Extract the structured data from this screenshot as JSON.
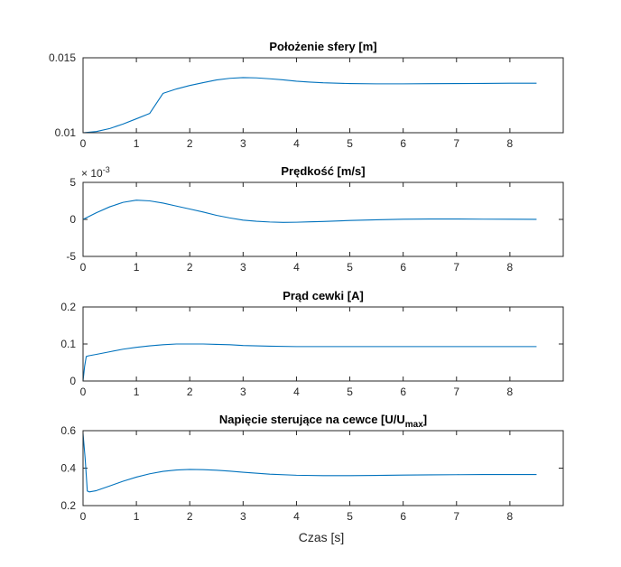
{
  "figure": {
    "xlabel": "Czas [s]"
  },
  "chart_data": [
    {
      "type": "line",
      "title": "Położenie sfery [m]",
      "title_sub": "",
      "title_after": "",
      "xlim": [
        0,
        9
      ],
      "ylim": [
        0.01,
        0.015
      ],
      "xticks": [
        "0",
        "1",
        "2",
        "3",
        "4",
        "5",
        "6",
        "7",
        "8"
      ],
      "yticks": [
        "0.01",
        "0.015"
      ],
      "ytick_values": [
        0.01,
        0.015
      ],
      "y_exponent": "",
      "color": "#0072BD",
      "series": [
        {
          "x": [
            0,
            0.25,
            0.5,
            0.75,
            1,
            1.25,
            1.5,
            1.75,
            2,
            2.25,
            2.5,
            2.75,
            3,
            3.25,
            3.5,
            3.75,
            4,
            4.25,
            4.5,
            5,
            5.5,
            6,
            6.5,
            7,
            7.5,
            8,
            8.5
          ],
          "values": [
            0.01,
            0.01008,
            0.01028,
            0.01058,
            0.01093,
            0.01129,
            0.01263,
            0.01292,
            0.01315,
            0.01334,
            0.01352,
            0.01363,
            0.01368,
            0.01366,
            0.0136,
            0.01353,
            0.01344,
            0.01338,
            0.01333,
            0.01328,
            0.01326,
            0.01326,
            0.01327,
            0.01328,
            0.01329,
            0.0133,
            0.0133
          ]
        }
      ]
    },
    {
      "type": "line",
      "title": "Prędkość [m/s]",
      "title_sub": "",
      "title_after": "",
      "xlim": [
        0,
        9
      ],
      "ylim": [
        -5,
        5
      ],
      "xticks": [
        "0",
        "1",
        "2",
        "3",
        "4",
        "5",
        "6",
        "7",
        "8"
      ],
      "yticks": [
        "-5",
        "0",
        "5"
      ],
      "ytick_values": [
        -5,
        0,
        5
      ],
      "y_exponent": "× 10",
      "y_exponent_power": "-3",
      "color": "#0072BD",
      "series": [
        {
          "x": [
            0,
            0.25,
            0.5,
            0.75,
            1,
            1.25,
            1.5,
            1.75,
            2,
            2.25,
            2.5,
            2.75,
            3,
            3.25,
            3.5,
            3.75,
            4,
            4.25,
            4.5,
            5,
            5.5,
            6,
            6.5,
            7,
            7.5,
            8,
            8.5
          ],
          "values": [
            0,
            0.9,
            1.7,
            2.3,
            2.6,
            2.5,
            2.2,
            1.8,
            1.4,
            1.0,
            0.55,
            0.2,
            -0.1,
            -0.25,
            -0.35,
            -0.4,
            -0.38,
            -0.33,
            -0.28,
            -0.15,
            -0.05,
            0.02,
            0.05,
            0.05,
            0.03,
            0.02,
            0.01
          ]
        }
      ]
    },
    {
      "type": "line",
      "title": "Prąd cewki [A]",
      "title_sub": "",
      "title_after": "",
      "xlim": [
        0,
        9
      ],
      "ylim": [
        0,
        0.2
      ],
      "xticks": [
        "0",
        "1",
        "2",
        "3",
        "4",
        "5",
        "6",
        "7",
        "8"
      ],
      "yticks": [
        "0",
        "0.1",
        "0.2"
      ],
      "ytick_values": [
        0,
        0.1,
        0.2
      ],
      "y_exponent": "",
      "color": "#0072BD",
      "series": [
        {
          "x": [
            0,
            0.03,
            0.06,
            0.1,
            0.25,
            0.5,
            0.75,
            1,
            1.25,
            1.5,
            1.75,
            2,
            2.25,
            2.5,
            2.75,
            3,
            3.5,
            4,
            4.5,
            5,
            5.5,
            6,
            6.5,
            7,
            7.5,
            8,
            8.5
          ],
          "values": [
            0,
            0.04,
            0.066,
            0.068,
            0.072,
            0.079,
            0.086,
            0.091,
            0.095,
            0.098,
            0.1,
            0.1,
            0.1,
            0.099,
            0.098,
            0.096,
            0.094,
            0.093,
            0.093,
            0.093,
            0.093,
            0.093,
            0.093,
            0.093,
            0.093,
            0.093,
            0.093
          ]
        }
      ]
    },
    {
      "type": "line",
      "title": "Napięcie sterujące na cewce [U/U",
      "title_sub": "max",
      "title_after": "]",
      "xlim": [
        0,
        9
      ],
      "ylim": [
        0.2,
        0.6
      ],
      "xticks": [
        "0",
        "1",
        "2",
        "3",
        "4",
        "5",
        "6",
        "7",
        "8"
      ],
      "yticks": [
        "0.2",
        "0.4",
        "0.6"
      ],
      "ytick_values": [
        0.2,
        0.4,
        0.6
      ],
      "y_exponent": "",
      "color": "#0072BD",
      "series": [
        {
          "x": [
            0,
            0.04,
            0.08,
            0.12,
            0.25,
            0.5,
            0.75,
            1,
            1.25,
            1.5,
            1.75,
            2,
            2.25,
            2.5,
            2.75,
            3,
            3.5,
            4,
            4.5,
            5,
            5.5,
            6,
            6.5,
            7,
            7.5,
            8,
            8.5
          ],
          "values": [
            0.585,
            0.45,
            0.278,
            0.273,
            0.28,
            0.305,
            0.33,
            0.352,
            0.37,
            0.383,
            0.39,
            0.393,
            0.392,
            0.389,
            0.384,
            0.378,
            0.368,
            0.362,
            0.36,
            0.36,
            0.361,
            0.363,
            0.364,
            0.365,
            0.366,
            0.366,
            0.366
          ]
        }
      ]
    }
  ]
}
